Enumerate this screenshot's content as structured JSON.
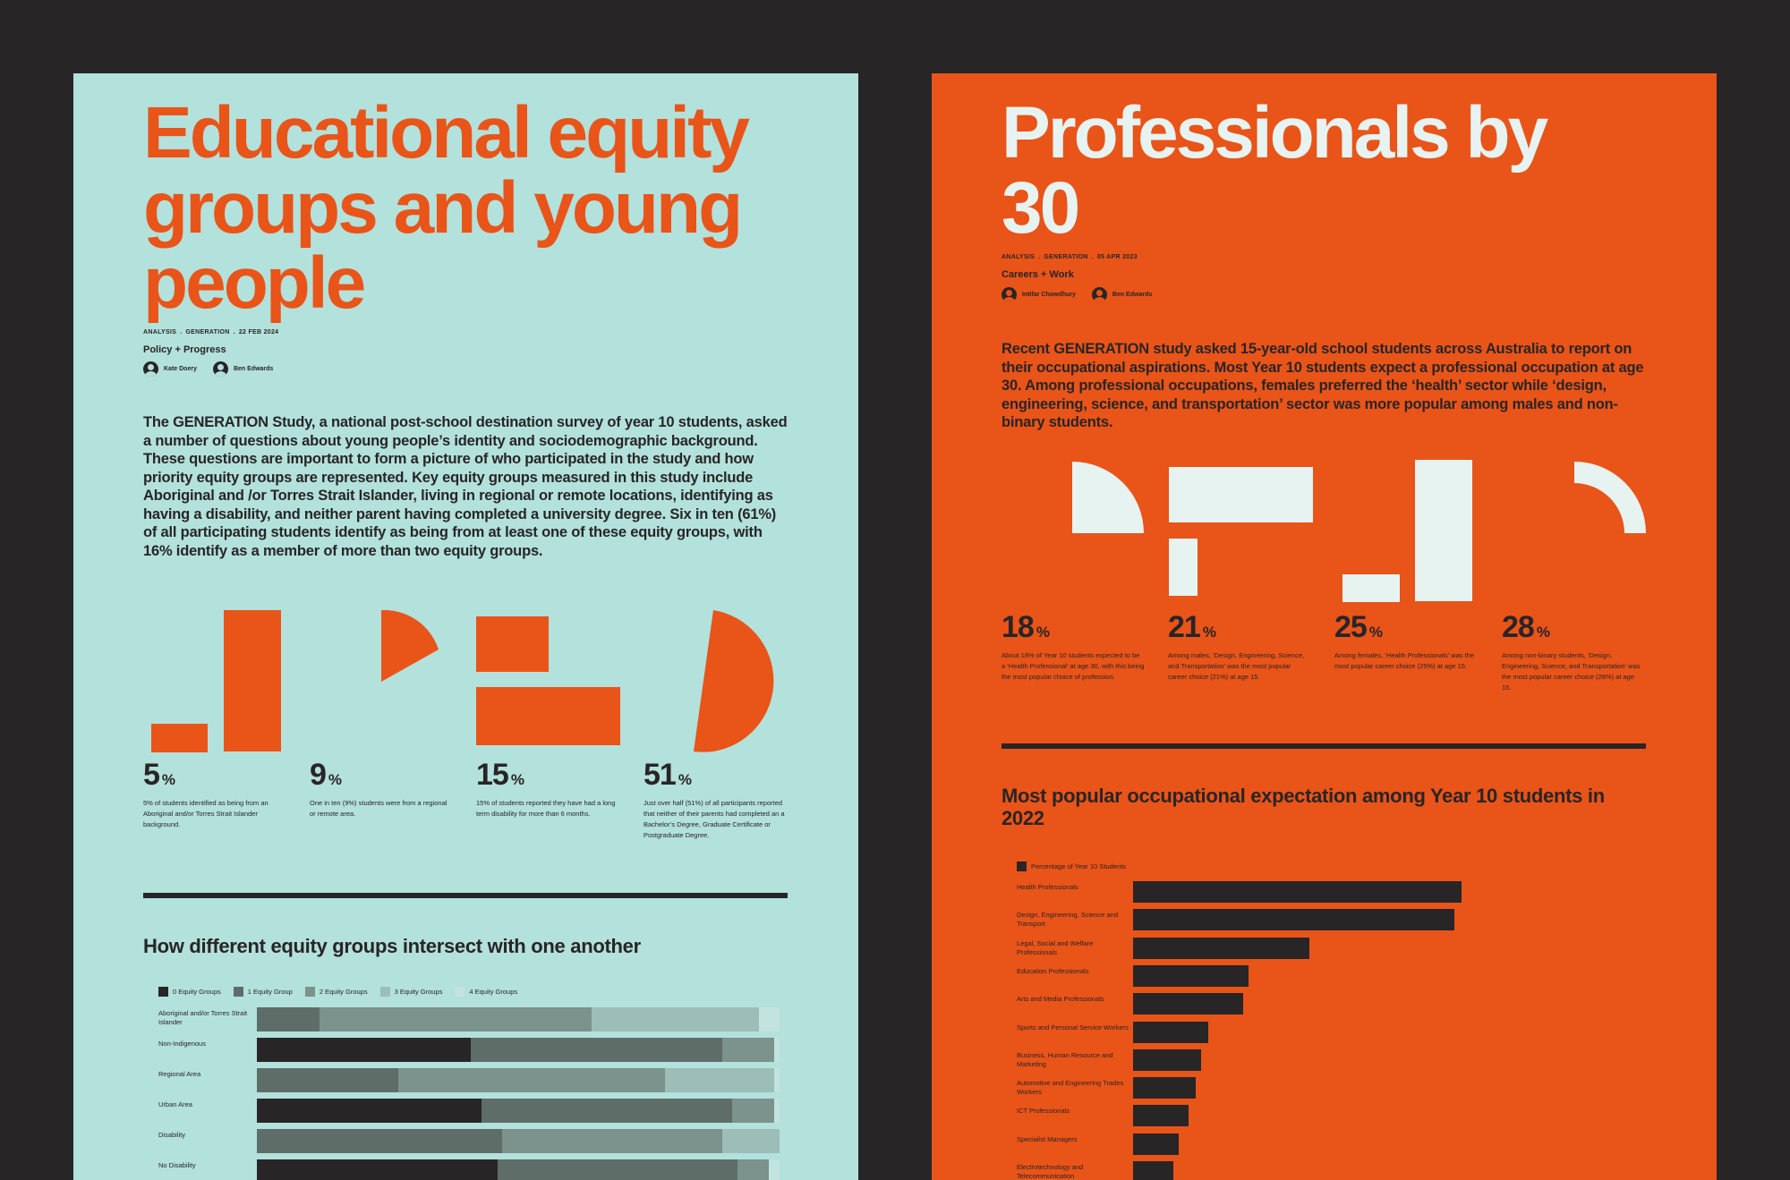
{
  "left_poster": {
    "title": "Educational equity groups and young people",
    "meta": [
      "ANALYSIS",
      ".",
      "GENERATION",
      ".",
      "22 FEB 2024"
    ],
    "category": "Policy + Progress",
    "authors": [
      "Kate Doery",
      "Ben Edwards"
    ],
    "intro": "The GENERATION Study, a national post-school destination survey of year 10 students, asked a number of questions about young people’s identity and sociodemographic background. These questions are important to form a picture of who participated in the study and how priority equity groups are represented. Key equity groups measured in this study include Aboriginal and /or Torres Strait Islander, living in regional or remote locations, identifying as having a disability, and neither parent having completed a university degree. Six in ten (61%) of all participating students identify as being from at least one of these equity groups, with 16% identify as a member of more than two equity groups.",
    "stats": [
      {
        "value": "5",
        "unit": "%",
        "desc": "5% of students identified as being from an Aboriginal and/or Torres Strait Islander background."
      },
      {
        "value": "9",
        "unit": "%",
        "desc": "One in ten (9%) students were from a regional or remote area."
      },
      {
        "value": "15",
        "unit": "%",
        "desc": "15% of students reported they have had a long term disability for more than 6 months."
      },
      {
        "value": "51",
        "unit": "%",
        "desc": "Just over half (51%) of all participants reported that neither of their parents had completed an a Bachelor’s Degree, Graduate Certificate or Postgraduate Degree."
      }
    ],
    "section_title": "How different equity groups intersect with one another",
    "colors": {
      "bg": "#b3e1dc",
      "accent": "#e95419",
      "ink": "#282526"
    }
  },
  "right_poster": {
    "title": "Professionals by 30",
    "meta": [
      "ANALYSIS",
      ".",
      "GENERATION",
      ".",
      "05 APR 2023"
    ],
    "category": "Careers + Work",
    "authors": [
      "Intifar Chowdhury",
      "Ben Edwards"
    ],
    "intro": "Recent GENERATION study asked 15-year-old school students across Australia to report on their occupational aspirations. Most Year 10 students expect a professional occupation at age 30. Among professional occupations, females preferred the ‘health’ sector while ‘design, engineering, science, and transportation’ sector was more popular among males and non-binary students.",
    "stats": [
      {
        "value": "18",
        "unit": "%",
        "desc": "About 18% of Year 10 students expected to be a ‘Health Professional’ at age 30, with this being the most popular choice of profession."
      },
      {
        "value": "21",
        "unit": "%",
        "desc": "Among males, ‘Design, Engineering, Science, and Transportation’ was the most popular career choice (21%) at age 15."
      },
      {
        "value": "25",
        "unit": "%",
        "desc": "Among females, ‘Health Professionals’ was the most popular career choice (25%) at age 15."
      },
      {
        "value": "28",
        "unit": "%",
        "desc": "Among non-binary students, ‘Design, Engineering, Science, and Transportation’ was the most popular career choice (28%) at age 15."
      }
    ],
    "section_title": "Most popular occupational expectation among Year 10 students in 2022",
    "colors": {
      "bg": "#e95419",
      "light": "#e6f3f1",
      "ink": "#282526"
    }
  },
  "chart_data": [
    {
      "type": "bar",
      "orientation": "horizontal",
      "stacked": true,
      "title": "How different equity groups intersect with one another",
      "categories": [
        "Aboriginal and/or Torres Strait Islander",
        "Non-Indigenous",
        "Regional Area",
        "Urban Area",
        "Disability",
        "No Disability"
      ],
      "series": [
        {
          "name": "0 Equity Groups",
          "color": "#282526",
          "values": [
            0,
            41,
            0,
            43,
            0,
            46
          ]
        },
        {
          "name": "1 Equity Group",
          "color": "#5e6d68",
          "values": [
            12,
            48,
            27,
            48,
            47,
            46
          ]
        },
        {
          "name": "2 Equity Groups",
          "color": "#7c928d",
          "values": [
            52,
            10,
            51,
            8,
            42,
            6
          ]
        },
        {
          "name": "3 Equity Groups",
          "color": "#9dbdb7",
          "values": [
            32,
            0,
            21,
            0,
            11,
            0
          ]
        },
        {
          "name": "4 Equity Groups",
          "color": "#c3e3de",
          "values": [
            4,
            1,
            1,
            1,
            0,
            2
          ]
        }
      ],
      "legend_position": "top-left"
    },
    {
      "type": "bar",
      "orientation": "horizontal",
      "title": "Most popular occupational expectation among Year 10 students in 2022",
      "legend": "Percentage of Year 10 Students",
      "categories": [
        "Health Professionals",
        "Design, Engineering, Science and Transport",
        "Legal, Social and Welfare Professionals",
        "Education Professionals",
        "Arts and Media Professionals",
        "Sports and Personal Service Workers",
        "Business, Human Resource and Marketing",
        "Automotive and Engineering Trades Workers",
        "ICT Professionals",
        "Specialist Managers",
        "Electrotechnology and Telecommunication"
      ],
      "values": [
        17.9,
        17.5,
        9.6,
        6.3,
        6.0,
        4.1,
        3.7,
        3.4,
        3.0,
        2.5,
        2.2
      ],
      "xlim": [
        0,
        20
      ]
    }
  ]
}
